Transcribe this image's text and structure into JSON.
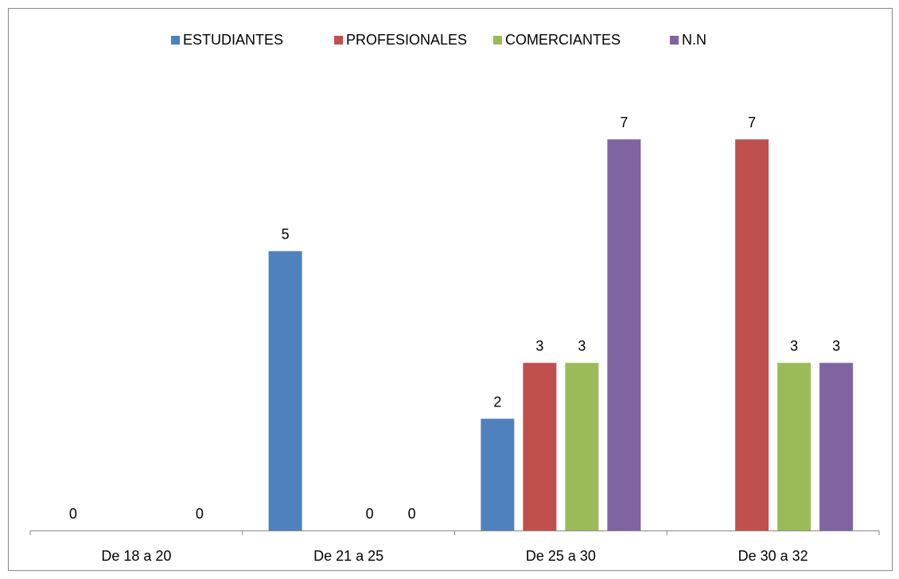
{
  "chart_data": {
    "type": "bar",
    "categories": [
      "De 18 a 20",
      "De 21 a 25",
      "De 25 a 30",
      "De 30 a 32"
    ],
    "series": [
      {
        "name": "ESTUDIANTES",
        "color": "#4f81bd",
        "values": [
          0,
          5,
          2,
          null
        ]
      },
      {
        "name": "PROFESIONALES",
        "color": "#c0504d",
        "values": [
          null,
          null,
          3,
          7
        ]
      },
      {
        "name": "COMERCIANTES",
        "color": "#9bbb59",
        "values": [
          null,
          0,
          3,
          3
        ]
      },
      {
        "name": "N.N",
        "color": "#8064a2",
        "values": [
          0,
          0,
          7,
          3
        ]
      }
    ],
    "ylim": [
      0,
      8
    ],
    "legend": "top"
  }
}
